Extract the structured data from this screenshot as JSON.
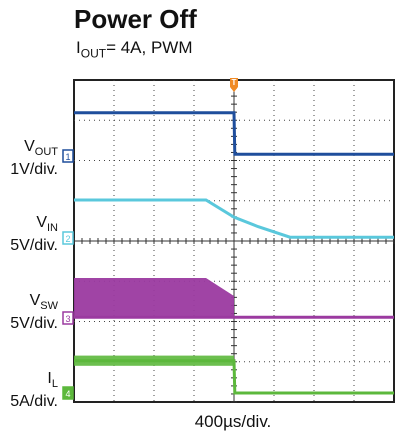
{
  "header": {
    "title": "Power Off",
    "subtitle_prefix": "I",
    "subtitle_sub": "OUT",
    "subtitle_suffix": "= 4A, PWM"
  },
  "chart_data": {
    "type": "line",
    "title": "Power Off",
    "subtitle": "IOUT= 4A, PWM",
    "xlabel": "400µs/div.",
    "x_divisions": 8,
    "y_divisions": 8,
    "grid": true,
    "trigger_marker": "T",
    "trigger_time_div": 4.0,
    "colors": {
      "vout": "#1f4e9c",
      "vin": "#5ac8dc",
      "vsw": "#9b3aa0",
      "il": "#5cb83c",
      "trigger": "#f08a24"
    },
    "series": [
      {
        "name": "VOUT",
        "name_main": "V",
        "name_sub": "OUT",
        "scale": "1V/div.",
        "channel": "1",
        "color": "#1f4e9c",
        "points": [
          [
            0,
            1.2
          ],
          [
            4.0,
            1.2
          ],
          [
            4.02,
            0.05
          ],
          [
            8.0,
            0.05
          ]
        ]
      },
      {
        "name": "VIN",
        "name_main": "V",
        "name_sub": "IN",
        "scale": "5V/div.",
        "channel": "2",
        "color": "#5ac8dc",
        "points": [
          [
            0,
            1.0
          ],
          [
            3.3,
            1.0
          ],
          [
            4.0,
            0.55
          ],
          [
            4.6,
            0.3
          ],
          [
            5.4,
            0.02
          ],
          [
            8.0,
            0.02
          ]
        ]
      },
      {
        "name": "VSW",
        "name_main": "V",
        "name_sub": "SW",
        "scale": "5V/div.",
        "channel": "3",
        "color": "#9b3aa0",
        "band_high": [
          [
            0,
            1.0
          ],
          [
            3.3,
            1.0
          ],
          [
            4.0,
            0.55
          ]
        ],
        "points": [
          [
            0,
            0.02
          ],
          [
            4.0,
            0.02
          ],
          [
            8.0,
            0.02
          ]
        ]
      },
      {
        "name": "IL",
        "name_main": "I",
        "name_sub": "L",
        "scale": "5A/div.",
        "channel": "4",
        "color": "#5cb83c",
        "band_low": 0.8,
        "band_high": 1.1,
        "points": [
          [
            0,
            0.95
          ],
          [
            4.0,
            0.95
          ],
          [
            4.02,
            0.0
          ],
          [
            8.0,
            0.0
          ]
        ]
      }
    ]
  },
  "channels": [
    {
      "main": "V",
      "sub": "OUT",
      "scale": "1V/div."
    },
    {
      "main": "V",
      "sub": "IN",
      "scale": "5V/div."
    },
    {
      "main": "V",
      "sub": "SW",
      "scale": "5V/div."
    },
    {
      "main": "I",
      "sub": "L",
      "scale": "5A/div."
    }
  ]
}
